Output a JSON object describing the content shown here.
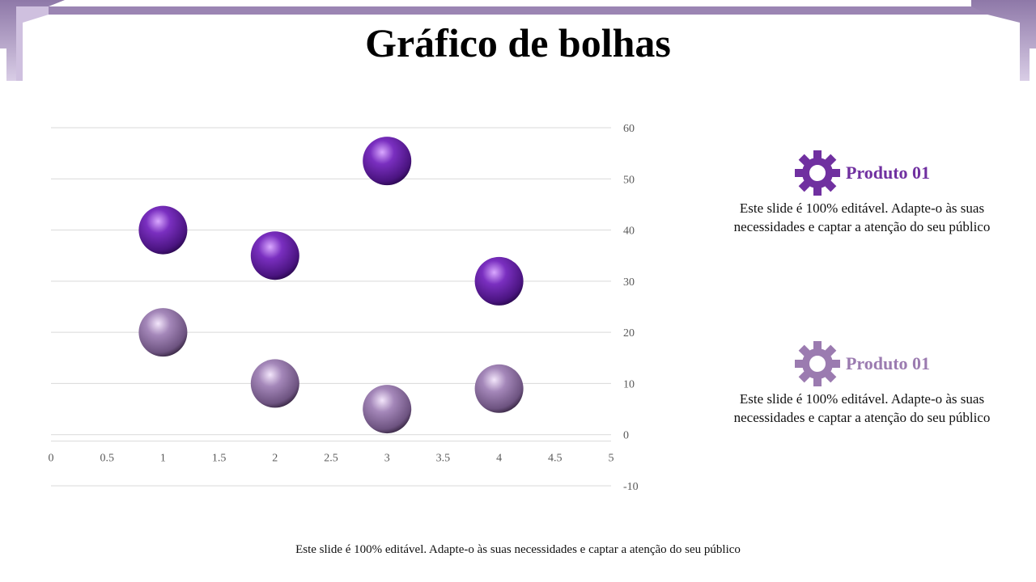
{
  "title": "Gráfico de bolhas",
  "colors": {
    "accent_dark": "#7030a0",
    "accent_light": "#9b7bb0",
    "frame": "#9b85b3"
  },
  "chart_data": {
    "type": "scatter",
    "x_ticks": [
      "0",
      "0.5",
      "1",
      "1.5",
      "2",
      "2.5",
      "3",
      "3.5",
      "4",
      "4.5",
      "5"
    ],
    "y_ticks": [
      "60",
      "50",
      "40",
      "30",
      "20",
      "10",
      "0",
      "-10"
    ],
    "xlim": [
      0,
      5
    ],
    "ylim": [
      -10,
      60
    ],
    "grid": true,
    "y_axis_side": "right",
    "series": [
      {
        "color": "#7030a0",
        "points": [
          {
            "x": 1,
            "y": 40
          },
          {
            "x": 2,
            "y": 35
          },
          {
            "x": 3,
            "y": 53.5
          },
          {
            "x": 4,
            "y": 30
          }
        ]
      },
      {
        "color": "#9b7bb0",
        "points": [
          {
            "x": 1,
            "y": 20
          },
          {
            "x": 2,
            "y": 10
          },
          {
            "x": 3,
            "y": 5
          },
          {
            "x": 4,
            "y": 9
          }
        ]
      }
    ]
  },
  "legend": [
    {
      "icon": "gear-icon",
      "name": "Produto 01",
      "color": "#7030a0",
      "text": "Este slide é 100% editável. Adapte-o às suas necessidades e captar a atenção do seu público"
    },
    {
      "icon": "gear-icon",
      "name": "Produto 01",
      "color": "#9b7bb0",
      "text": "Este slide é 100% editável. Adapte-o às suas necessidades e captar a atenção do seu público"
    }
  ],
  "footer": "Este slide é 100% editável. Adapte-o às suas necessidades e captar a atenção do seu público"
}
